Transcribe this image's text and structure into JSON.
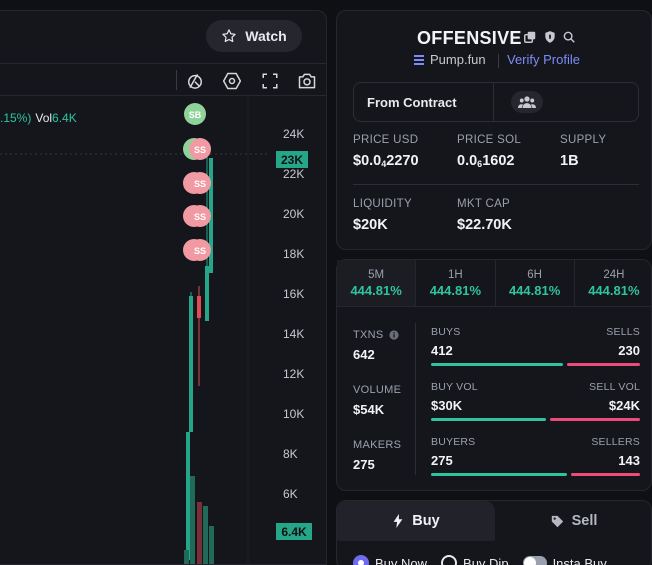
{
  "chart": {
    "watch_label": "Watch",
    "legend_change": ".15%)",
    "legend_vol_label": "Vol",
    "legend_vol_value": "6.4K",
    "price_axis": [
      "24K",
      "22K",
      "20K",
      "18K",
      "16K",
      "14K",
      "12K",
      "10K",
      "8K",
      "6K"
    ],
    "current_price_tag": "23K",
    "volume_tag": "6.4K",
    "trade_markers": [
      "SB",
      "SS",
      "SS",
      "SS",
      "SS"
    ],
    "colors": {
      "up": "#26a688",
      "down": "#e04b55",
      "marker_sell": "#f29aa3",
      "marker_buy": "#8fd39a",
      "tag": "#26a688"
    }
  },
  "token": {
    "name": "OFFENSIVE",
    "platform": "Pump.fun",
    "verify_label": "Verify Profile",
    "contract_label": "From Contract",
    "price_usd_label": "PRICE USD",
    "price_usd_prefix": "$0.0",
    "price_usd_sub": "4",
    "price_usd_digits": "2270",
    "price_sol_label": "PRICE SOL",
    "price_sol_prefix": "0.0",
    "price_sol_sub": "6",
    "price_sol_digits": "1602",
    "supply_label": "SUPPLY",
    "supply_value": "1B",
    "liquidity_label": "LIQUIDITY",
    "liquidity_value": "$20K",
    "mktcap_label": "MKT CAP",
    "mktcap_value": "$22.70K"
  },
  "timeframes": [
    {
      "label": "5M",
      "change": "444.81%"
    },
    {
      "label": "1H",
      "change": "444.81%"
    },
    {
      "label": "6H",
      "change": "444.81%"
    },
    {
      "label": "24H",
      "change": "444.81%"
    }
  ],
  "stats": {
    "txns_label": "TXNS",
    "txns_value": "642",
    "volume_label": "VOLUME",
    "volume_value": "$54K",
    "makers_label": "MAKERS",
    "makers_value": "275",
    "buys_label": "BUYS",
    "buys_value": "412",
    "sells_label": "SELLS",
    "sells_value": "230",
    "buy_share": 0.64,
    "buy_vol_label": "BUY VOL",
    "buy_vol_value": "$30K",
    "sell_vol_label": "SELL VOL",
    "sell_vol_value": "$24K",
    "buy_vol_share": 0.56,
    "buyers_label": "BUYERS",
    "buyers_value": "275",
    "sellers_label": "SELLERS",
    "sellers_value": "143",
    "buyer_share": 0.66
  },
  "trade": {
    "buy_tab": "Buy",
    "sell_tab": "Sell",
    "options": [
      "Buy Now",
      "Buy Dip",
      "Insta Buy"
    ]
  }
}
